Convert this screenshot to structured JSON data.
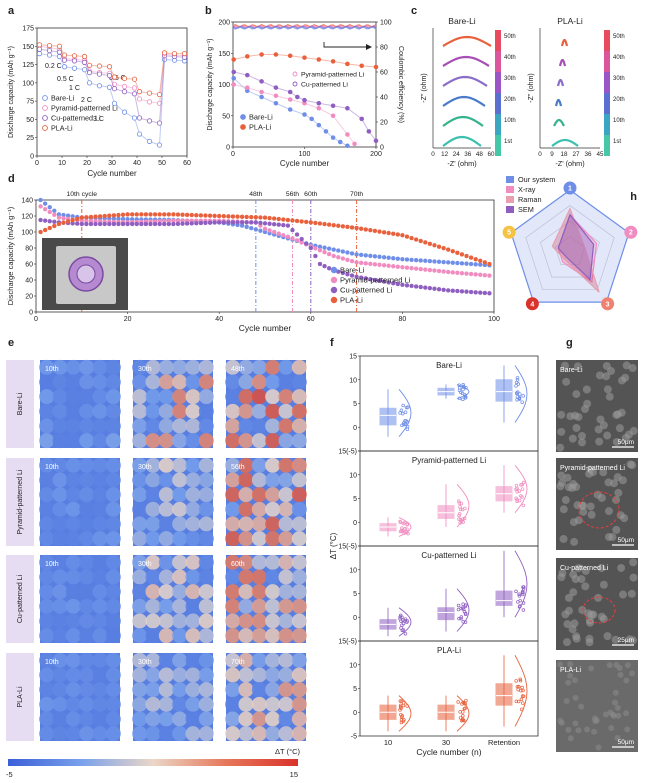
{
  "colors": {
    "bare": "#6f8ee8",
    "pyramid": "#f08cc0",
    "cu": "#8e5fc0",
    "pla": "#e8613c",
    "heat_low": "#3b5fd8",
    "heat_high": "#d9322a",
    "cbar_bare": "#f07a8c",
    "cbar_pla": "#2ea8a0"
  },
  "panels": {
    "a": "a",
    "b": "b",
    "c": "c",
    "d": "d",
    "e": "e",
    "f": "f",
    "g": "g",
    "h": "h"
  },
  "chart_data": [
    {
      "id": "a",
      "type": "scatter",
      "xlabel": "Cycle number",
      "ylabel": "Discharge capacity (mAh g⁻¹)",
      "xlim": [
        0,
        60
      ],
      "ylim": [
        0,
        175
      ],
      "xticks": [
        "0",
        "10",
        "20",
        "30",
        "40",
        "50",
        "60"
      ],
      "yticks": [
        "0",
        "25",
        "50",
        "75",
        "100",
        "125",
        "150",
        "175"
      ],
      "annotations": [
        "0.2 C",
        "0.5 C",
        "1 C",
        "2 C",
        "3 C",
        "0.5 C"
      ],
      "series": [
        {
          "name": "Bare-Li",
          "x": [
            1,
            5,
            9,
            11,
            15,
            19,
            21,
            25,
            29,
            31,
            35,
            39,
            41,
            45,
            49,
            51,
            55,
            59
          ],
          "y": [
            140,
            138,
            136,
            122,
            120,
            118,
            100,
            96,
            94,
            72,
            60,
            52,
            30,
            20,
            15,
            132,
            131,
            130
          ]
        },
        {
          "name": "Pyramid-patterned Li",
          "x": [
            1,
            5,
            9,
            11,
            15,
            19,
            21,
            25,
            29,
            31,
            35,
            39,
            41,
            45,
            49,
            51,
            55,
            59
          ],
          "y": [
            150,
            148,
            146,
            133,
            132,
            131,
            116,
            114,
            113,
            98,
            95,
            93,
            78,
            74,
            72,
            139,
            138,
            137
          ]
        },
        {
          "name": "Cu-patterned Li",
          "x": [
            1,
            5,
            9,
            11,
            15,
            19,
            21,
            25,
            29,
            31,
            35,
            39,
            41,
            45,
            49,
            51,
            55,
            59
          ],
          "y": [
            146,
            144,
            142,
            131,
            130,
            128,
            114,
            112,
            110,
            92,
            88,
            85,
            52,
            48,
            45,
            137,
            136,
            135
          ]
        },
        {
          "name": "PLA-Li",
          "x": [
            1,
            5,
            9,
            11,
            15,
            19,
            21,
            25,
            29,
            31,
            35,
            39,
            41,
            45,
            49,
            51,
            55,
            59
          ],
          "y": [
            152,
            151,
            150,
            138,
            137,
            136,
            124,
            123,
            122,
            108,
            106,
            105,
            88,
            86,
            84,
            141,
            140,
            140
          ]
        }
      ],
      "legend": "bottom-left"
    },
    {
      "id": "b",
      "type": "scatter",
      "xlabel": "Cycle number",
      "ylabel": "Discharge capacity (mAh g⁻¹)",
      "y2label": "Coulombic efficiency (%)",
      "xlim": [
        0,
        200
      ],
      "ylim": [
        0,
        200
      ],
      "y2lim": [
        0,
        100
      ],
      "xticks": [
        "0",
        "100",
        "200"
      ],
      "yticks": [
        "0",
        "50",
        "100",
        "150",
        "200"
      ],
      "y2ticks": [
        "0",
        "20",
        "40",
        "60",
        "80",
        "100"
      ],
      "series": [
        {
          "name": "Bare-Li",
          "x": [
            1,
            20,
            40,
            60,
            80,
            100,
            110,
            120,
            130,
            140,
            150,
            160
          ],
          "y": [
            110,
            90,
            80,
            70,
            60,
            52,
            45,
            35,
            25,
            15,
            8,
            2
          ]
        },
        {
          "name": "PLA-Li",
          "x": [
            1,
            20,
            40,
            60,
            80,
            100,
            120,
            140,
            160,
            180,
            200
          ],
          "y": [
            140,
            145,
            148,
            148,
            146,
            143,
            140,
            137,
            133,
            130,
            128
          ]
        },
        {
          "name": "Pyramid-patterned Li",
          "x": [
            1,
            20,
            40,
            60,
            80,
            100,
            120,
            140,
            160,
            170
          ],
          "y": [
            100,
            95,
            88,
            82,
            76,
            70,
            62,
            50,
            20,
            5
          ]
        },
        {
          "name": "Cu-patterned Li",
          "x": [
            1,
            20,
            40,
            60,
            80,
            90,
            100,
            120,
            140,
            160,
            180,
            190,
            200
          ],
          "y": [
            120,
            115,
            105,
            95,
            88,
            80,
            75,
            70,
            66,
            62,
            45,
            25,
            10
          ]
        }
      ],
      "ce": {
        "x": [
          1,
          50,
          100,
          150,
          200
        ],
        "y": [
          96,
          98,
          98,
          97,
          97
        ]
      },
      "legend": "center-right"
    },
    {
      "id": "c",
      "type": "line",
      "titles": [
        "Bare-Li",
        "PLA-Li"
      ],
      "xlabel": "-Z' (ohm)",
      "ylabel": "-Z'' (ohm)",
      "bare_xticks": [
        "0",
        "12",
        "24",
        "36",
        "48",
        "60"
      ],
      "pla_xticks": [
        "0",
        "9",
        "18",
        "27",
        "36",
        "45"
      ],
      "cycle_labels": [
        "50th",
        "40th",
        "30th",
        "20th",
        "10th",
        "1st"
      ]
    },
    {
      "id": "d",
      "type": "scatter",
      "xlabel": "Cycle number",
      "ylabel": "Discharge capacity (mAh g⁻¹)",
      "xlim": [
        0,
        100
      ],
      "ylim": [
        0,
        140
      ],
      "xticks": [
        "0",
        "20",
        "40",
        "60",
        "80",
        "100"
      ],
      "yticks": [
        "0",
        "20",
        "40",
        "60",
        "80",
        "100",
        "120",
        "140"
      ],
      "markers": [
        {
          "x": 10,
          "label": "10th cycle"
        },
        {
          "x": 48,
          "label": "48th"
        },
        {
          "x": 56,
          "label": "56th"
        },
        {
          "x": 60,
          "label": "60th"
        },
        {
          "x": 70,
          "label": "70th"
        }
      ],
      "series": [
        {
          "name": "Bare-Li",
          "x": [
            1,
            5,
            10,
            20,
            30,
            40,
            45,
            50,
            55,
            60,
            65,
            70,
            80,
            90,
            100
          ],
          "y": [
            140,
            122,
            118,
            116,
            115,
            112,
            108,
            100,
            92,
            84,
            78,
            72,
            66,
            62,
            58
          ]
        },
        {
          "name": "Pyramid-patterned Li",
          "x": [
            1,
            5,
            10,
            20,
            30,
            40,
            48,
            50,
            56,
            60,
            65,
            70,
            80,
            90,
            100
          ],
          "y": [
            132,
            118,
            114,
            112,
            114,
            114,
            112,
            104,
            92,
            82,
            70,
            62,
            56,
            50,
            45
          ]
        },
        {
          "name": "Cu-patterned Li",
          "x": [
            1,
            5,
            10,
            20,
            30,
            40,
            48,
            55,
            60,
            62,
            65,
            70,
            80,
            90,
            100
          ],
          "y": [
            115,
            112,
            110,
            110,
            110,
            112,
            112,
            108,
            80,
            60,
            52,
            44,
            34,
            27,
            23
          ]
        },
        {
          "name": "PLA-Li",
          "x": [
            1,
            5,
            10,
            20,
            30,
            40,
            50,
            60,
            70,
            80,
            90,
            100
          ],
          "y": [
            100,
            110,
            118,
            122,
            122,
            120,
            118,
            112,
            105,
            96,
            78,
            58
          ]
        }
      ],
      "legend": "center-right"
    },
    {
      "id": "f",
      "type": "scatter",
      "ylabel": "ΔT (°C)",
      "xlabel": "Cycle number (n)",
      "categories": [
        "10",
        "30",
        "Retention"
      ],
      "yticks": [
        "15(-5)",
        "10",
        "5",
        "0",
        "-5"
      ],
      "rows": [
        {
          "name": "Bare-Li",
          "medians": [
            2.5,
            7.5,
            7.5
          ],
          "q1": [
            0.5,
            6.8,
            5.5
          ],
          "q3": [
            4,
            8.2,
            10
          ],
          "min": [
            -2,
            6,
            1
          ],
          "max": [
            8,
            9,
            13
          ]
        },
        {
          "name": "Pyramid-patterned Li",
          "medians": [
            -1,
            2,
            6
          ],
          "q1": [
            -1.8,
            0.8,
            4.5
          ],
          "q3": [
            -0.3,
            3.5,
            7.5
          ],
          "min": [
            -3,
            -1,
            2
          ],
          "max": [
            1,
            8,
            12
          ]
        },
        {
          "name": "Cu-patterned Li",
          "medians": [
            -1.5,
            1,
            3.5
          ],
          "q1": [
            -2.5,
            -0.5,
            2.5
          ],
          "q3": [
            -0.5,
            2,
            5.5
          ],
          "min": [
            -4,
            -3,
            0
          ],
          "max": [
            2,
            6,
            14
          ]
        },
        {
          "name": "PLA-Li",
          "medians": [
            0,
            0,
            3.5
          ],
          "q1": [
            -1.5,
            -1.5,
            1.5
          ],
          "q3": [
            1.5,
            1.5,
            6
          ],
          "min": [
            -4,
            -4,
            -3
          ],
          "max": [
            3.5,
            3.5,
            12
          ]
        }
      ]
    },
    {
      "id": "h",
      "type": "radar",
      "axes": [
        "1",
        "2",
        "3",
        "4",
        "5"
      ],
      "series": [
        {
          "name": "Our system",
          "values": [
            1,
            1,
            1,
            1,
            1
          ]
        },
        {
          "name": "X-ray",
          "values": [
            0.6,
            0.45,
            0.6,
            0.2,
            0.2
          ]
        },
        {
          "name": "Raman",
          "values": [
            0.7,
            0.25,
            0.8,
            0.15,
            0.3
          ]
        },
        {
          "name": "SEM",
          "values": [
            0.6,
            0.4,
            0.55,
            0.1,
            0.2
          ]
        }
      ],
      "legend": "top-left"
    }
  ],
  "legends": {
    "a": [
      "Bare-Li",
      "Pyramid-patterned Li",
      "Cu-patterned Li",
      "PLA-Li"
    ],
    "b": [
      "Pyramid-patterned Li",
      "Cu-patterned Li",
      "Bare-Li",
      "PLA-Li"
    ],
    "d": [
      "Bare-Li",
      "Pyramid-patterned Li",
      "Cu-patterned Li",
      "PLA-Li"
    ],
    "h": [
      "Our system",
      "X-ray",
      "Raman",
      "SEM"
    ]
  },
  "heatmap": {
    "rows": [
      "Bare-Li",
      "Pyramid-patterned Li",
      "Cu-patterned Li",
      "PLA-Li"
    ],
    "labels": [
      [
        "10th",
        "30th",
        "48th"
      ],
      [
        "10th",
        "30th",
        "56th"
      ],
      [
        "10th",
        "30th",
        "60th"
      ],
      [
        "10th",
        "30th",
        "70th"
      ]
    ],
    "intensity": [
      [
        0.15,
        0.6,
        0.8
      ],
      [
        0.1,
        0.4,
        0.75
      ],
      [
        0.1,
        0.45,
        0.7
      ],
      [
        0.1,
        0.3,
        0.55
      ]
    ],
    "colorbar_label": "ΔT (°C)",
    "cmin": "-5",
    "cmax": "15"
  },
  "sem": {
    "labels": [
      "Bare-Li",
      "Pyramid-patterned Li",
      "Cu-patterned Li",
      "PLA-Li"
    ],
    "scales": [
      "50μm",
      "50μm",
      "25μm",
      "50μm"
    ]
  }
}
